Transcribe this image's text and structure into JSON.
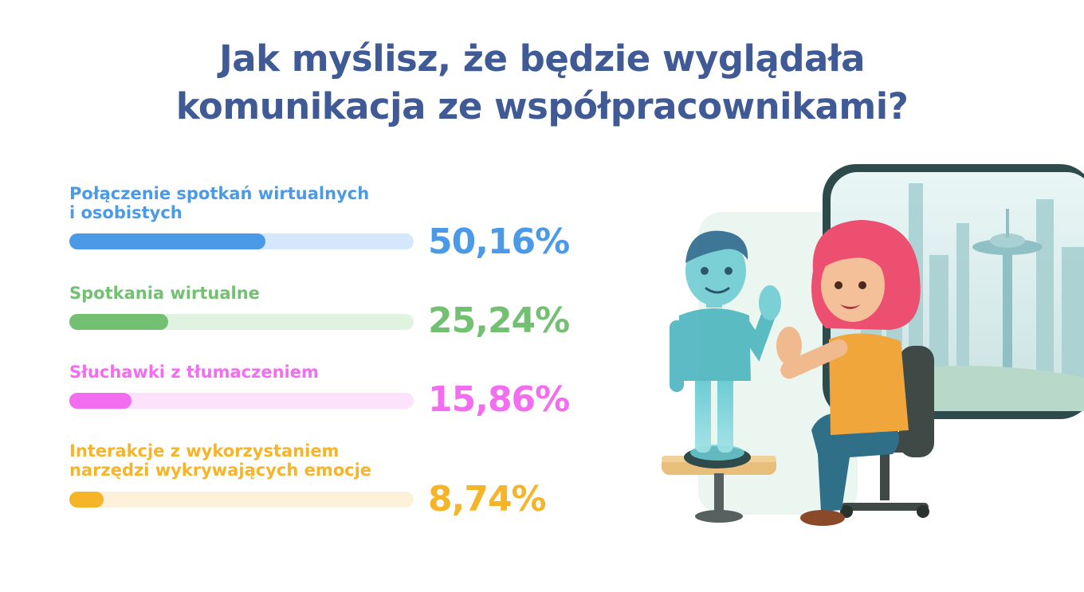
{
  "title": {
    "line1": "Jak myślisz, że będzie wyglądała",
    "line2": "komunikacja ze współpracownikami?"
  },
  "chart_data": {
    "type": "bar",
    "orientation": "horizontal",
    "title": "Jak myślisz, że będzie wyglądała komunikacja ze współpracownikami?",
    "unit": "%",
    "xlim": [
      0,
      88
    ],
    "items": [
      {
        "label_lines": [
          "Połączenie spotkań wirtualnych",
          "i osobistych"
        ],
        "value": 50.16,
        "value_label": "50,16%",
        "color": "#4a9ae8",
        "track_color": "#d5e8fb"
      },
      {
        "label_lines": [
          "Spotkania wirtualne"
        ],
        "value": 25.24,
        "value_label": "25,24%",
        "color": "#74c073",
        "track_color": "#e0f3e0"
      },
      {
        "label_lines": [
          "Słuchawki z tłumaczeniem"
        ],
        "value": 15.86,
        "value_label": "15,86%",
        "color": "#f26df0",
        "track_color": "#fde2fc"
      },
      {
        "label_lines": [
          "Interakcje z wykorzystaniem",
          "narzędzi wykrywających emocje"
        ],
        "value": 8.74,
        "value_label": "8,74%",
        "color": "#f6b428",
        "track_color": "#fdf1da"
      }
    ]
  },
  "illustration": {
    "subject": "hologram-meeting-icon"
  }
}
